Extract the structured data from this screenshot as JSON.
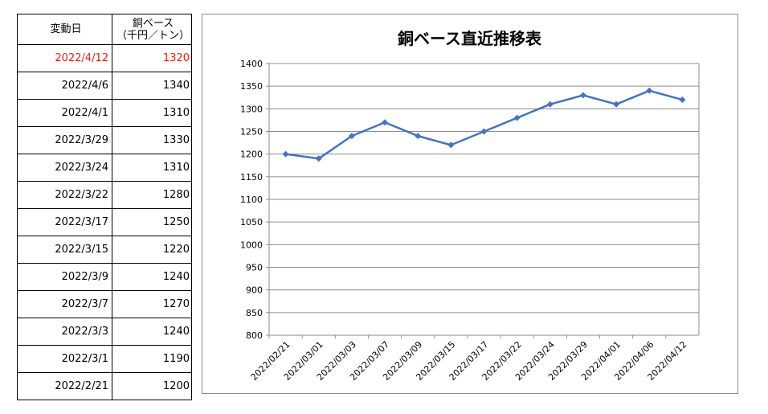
{
  "table": {
    "header_date": "変動日",
    "header_value_line1": "銅ベース",
    "header_value_line2": "（千円／トン）",
    "highlight_color": "#e3201b",
    "rows": [
      {
        "date": "2022/4/12",
        "value": "1320"
      },
      {
        "date": "2022/4/6",
        "value": "1340"
      },
      {
        "date": "2022/4/1",
        "value": "1310"
      },
      {
        "date": "2022/3/29",
        "value": "1330"
      },
      {
        "date": "2022/3/24",
        "value": "1310"
      },
      {
        "date": "2022/3/22",
        "value": "1280"
      },
      {
        "date": "2022/3/17",
        "value": "1250"
      },
      {
        "date": "2022/3/15",
        "value": "1220"
      },
      {
        "date": "2022/3/9",
        "value": "1240"
      },
      {
        "date": "2022/3/7",
        "value": "1270"
      },
      {
        "date": "2022/3/3",
        "value": "1240"
      },
      {
        "date": "2022/3/1",
        "value": "1190"
      },
      {
        "date": "2022/2/21",
        "value": "1200"
      }
    ]
  },
  "chart_data": {
    "type": "line",
    "title": "銅ベース直近推移表",
    "xlabel": "",
    "ylabel": "",
    "categories": [
      "2022/02/21",
      "2022/03/01",
      "2022/03/03",
      "2022/03/07",
      "2022/03/09",
      "2022/03/15",
      "2022/03/17",
      "2022/03/22",
      "2022/03/24",
      "2022/03/29",
      "2022/04/01",
      "2022/04/06",
      "2022/04/12"
    ],
    "series": [
      {
        "values": [
          1200,
          1190,
          1240,
          1270,
          1240,
          1220,
          1250,
          1280,
          1310,
          1330,
          1310,
          1340,
          1320
        ],
        "color": "#4472c4",
        "marker": "diamond"
      }
    ],
    "ylim": [
      800,
      1400
    ],
    "yticks": [
      800,
      850,
      900,
      950,
      1000,
      1050,
      1100,
      1150,
      1200,
      1250,
      1300,
      1350,
      1400
    ],
    "grid": "horizontal",
    "legend": "none",
    "x_label_rotation": "-45deg"
  }
}
